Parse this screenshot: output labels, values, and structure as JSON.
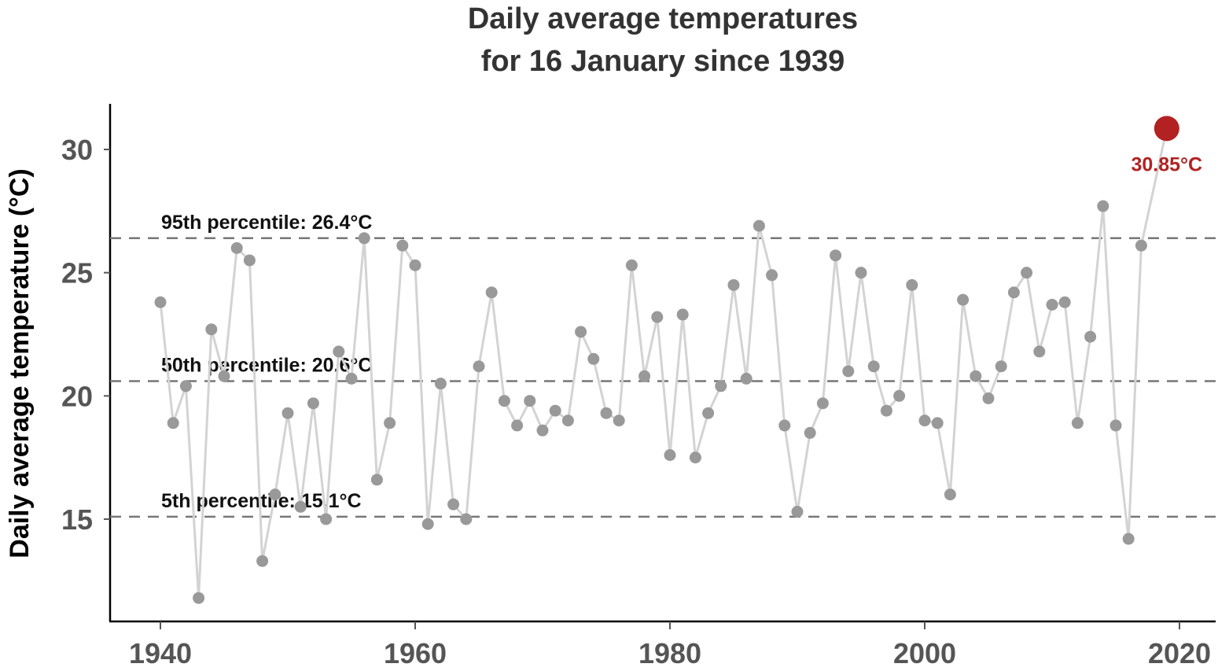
{
  "chart_data": {
    "type": "line",
    "title": [
      "Daily average temperatures",
      "for 16 January since 1939"
    ],
    "xlabel": "",
    "ylabel": "Daily average temperature (°C)",
    "xlim": [
      1936,
      2022
    ],
    "ylim": [
      11.5,
      31.8
    ],
    "xticks": [
      1940,
      1960,
      1980,
      2000,
      2020
    ],
    "yticks": [
      15,
      20,
      25,
      30
    ],
    "grid": false,
    "series": [
      {
        "name": "Daily average temperature",
        "x": [
          1940,
          1941,
          1942,
          1943,
          1944,
          1945,
          1946,
          1947,
          1948,
          1949,
          1950,
          1951,
          1952,
          1953,
          1954,
          1955,
          1956,
          1957,
          1958,
          1959,
          1960,
          1961,
          1962,
          1963,
          1964,
          1965,
          1966,
          1967,
          1968,
          1969,
          1970,
          1971,
          1972,
          1973,
          1974,
          1975,
          1976,
          1977,
          1978,
          1979,
          1980,
          1981,
          1982,
          1983,
          1984,
          1985,
          1986,
          1987,
          1988,
          1989,
          1990,
          1991,
          1992,
          1993,
          1994,
          1995,
          1996,
          1997,
          1998,
          1999,
          2000,
          2001,
          2002,
          2003,
          2004,
          2005,
          2006,
          2007,
          2008,
          2009,
          2010,
          2011,
          2012,
          2013,
          2014,
          2015,
          2016,
          2017,
          2019
        ],
        "y": [
          23.8,
          18.9,
          20.4,
          11.8,
          22.7,
          20.8,
          26.0,
          25.5,
          13.3,
          16.0,
          19.3,
          15.5,
          19.7,
          15.0,
          21.8,
          20.7,
          26.4,
          16.6,
          18.9,
          26.1,
          25.3,
          14.8,
          20.5,
          15.6,
          15.0,
          21.2,
          24.2,
          19.8,
          18.8,
          19.8,
          18.6,
          19.4,
          19.0,
          22.6,
          21.5,
          19.3,
          19.0,
          25.3,
          20.8,
          23.2,
          17.6,
          23.3,
          17.5,
          19.3,
          20.4,
          24.5,
          20.7,
          26.9,
          24.9,
          18.8,
          15.3,
          18.5,
          19.7,
          25.7,
          21.0,
          25.0,
          21.2,
          19.4,
          20.0,
          24.5,
          19.0,
          18.9,
          16.0,
          23.9,
          20.8,
          19.9,
          21.2,
          24.2,
          25.0,
          21.8,
          23.7,
          23.8,
          18.9,
          22.4,
          27.7,
          18.8,
          14.2,
          26.1,
          30.85
        ],
        "color": "#999999",
        "line_color": "#d3d3d3"
      }
    ],
    "highlight": {
      "x": 2019,
      "y": 30.85,
      "label": "30.85°C",
      "color": "#b22222"
    },
    "reference_lines": [
      {
        "value": 26.4,
        "label": "95th percentile:  26.4°C"
      },
      {
        "value": 20.6,
        "label": "50th percentile:  20.6°C"
      },
      {
        "value": 15.1,
        "label": "5th percentile:  15.1°C"
      }
    ]
  }
}
